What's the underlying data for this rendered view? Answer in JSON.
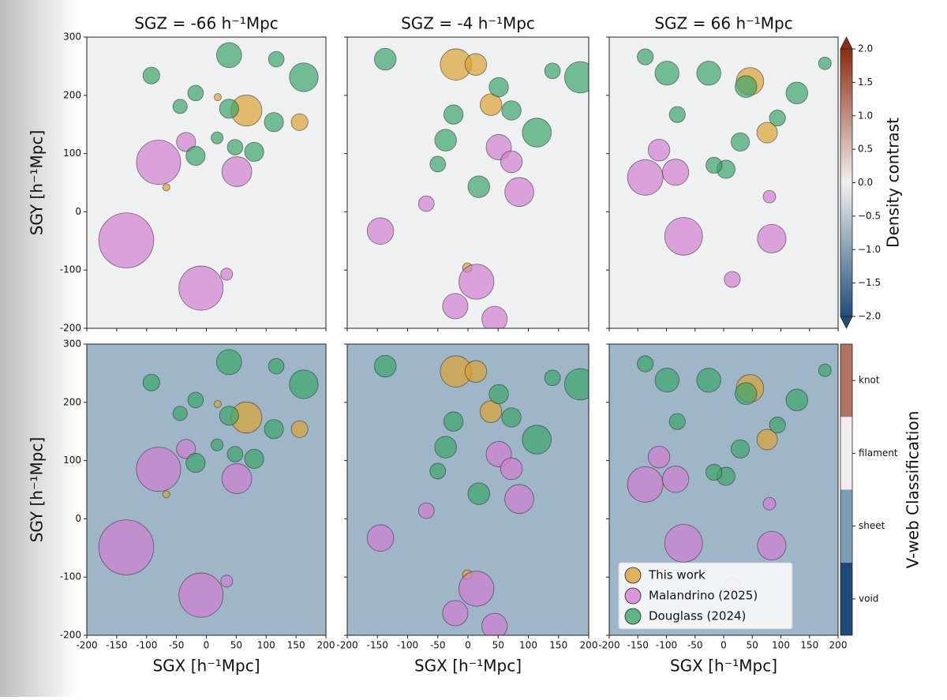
{
  "chart_data": [
    {
      "type": "scatter",
      "title": "SGZ = -66 h⁻¹Mpc",
      "ylabel": "SGY [h⁻¹Mpc]",
      "xlim": [
        -200,
        200
      ],
      "ylim": [
        -200,
        300
      ],
      "xticks": [
        -200,
        -150,
        -100,
        -50,
        0,
        50,
        100,
        150,
        200
      ],
      "yticks": [
        -200,
        -100,
        0,
        100,
        200,
        300
      ],
      "series": [
        {
          "name": "This work",
          "color": "#dba232",
          "x": [
            -67,
            19,
            67,
            156
          ],
          "y": [
            42,
            197,
            174,
            154
          ],
          "sizes": [
            6,
            6,
            26,
            14
          ]
        },
        {
          "name": "Malandrino (2025)",
          "color": "#d27fd0",
          "x": [
            -80,
            -134,
            -9,
            51,
            -34,
            34
          ],
          "y": [
            85,
            -49,
            -131,
            69,
            120,
            -107
          ],
          "sizes": [
            37,
            46,
            37,
            25,
            16,
            10
          ]
        },
        {
          "name": "Douglass (2024)",
          "color": "#3ca56a",
          "x": [
            38,
            -92,
            163,
            117,
            -18,
            38,
            113,
            -18,
            80,
            48,
            -44,
            18
          ],
          "y": [
            269,
            234,
            231,
            262,
            204,
            177,
            154,
            96,
            103,
            111,
            181,
            127
          ],
          "sizes": [
            21,
            14,
            24,
            13,
            13,
            16,
            16,
            16,
            16,
            13,
            12,
            10
          ]
        }
      ]
    },
    {
      "type": "scatter",
      "title": "SGZ = -4 h⁻¹Mpc",
      "xlim": [
        -200,
        200
      ],
      "ylim": [
        -200,
        300
      ],
      "xticks": [
        -200,
        -150,
        -100,
        -50,
        0,
        50,
        100,
        150,
        200
      ],
      "yticks": [
        -200,
        -100,
        0,
        100,
        200,
        300
      ],
      "series": [
        {
          "name": "This work",
          "color": "#dba232",
          "x": [
            -20,
            13,
            38,
            -1
          ],
          "y": [
            253,
            253,
            184,
            -96
          ],
          "sizes": [
            26,
            18,
            18,
            8
          ]
        },
        {
          "name": "Malandrino (2025)",
          "color": "#d27fd0",
          "x": [
            -145,
            14,
            -21,
            51,
            72,
            85,
            44,
            -69
          ],
          "y": [
            -33,
            -120,
            -162,
            111,
            86,
            34,
            -184,
            14
          ],
          "sizes": [
            22,
            29,
            21,
            21,
            18,
            24,
            21,
            13
          ]
        },
        {
          "name": "Douglass (2024)",
          "color": "#3ca56a",
          "x": [
            -137,
            -24,
            18,
            51,
            114,
            186,
            -37,
            -50,
            140,
            72
          ],
          "y": [
            262,
            167,
            43,
            214,
            136,
            231,
            123,
            82,
            242,
            174
          ],
          "sizes": [
            18,
            16,
            18,
            16,
            24,
            26,
            18,
            13,
            13,
            16
          ]
        }
      ]
    },
    {
      "type": "scatter",
      "title": "SGZ = 66 h⁻¹Mpc",
      "xlim": [
        -200,
        200
      ],
      "ylim": [
        -200,
        300
      ],
      "xticks": [
        -200,
        -150,
        -100,
        -50,
        0,
        50,
        100,
        150,
        200
      ],
      "yticks": [
        -200,
        -100,
        0,
        100,
        200,
        300
      ],
      "series": [
        {
          "name": "This work",
          "color": "#dba232",
          "x": [
            76,
            46
          ],
          "y": [
            136,
            224
          ],
          "sizes": [
            18,
            24
          ]
        },
        {
          "name": "Malandrino (2025)",
          "color": "#d27fd0",
          "x": [
            -137,
            -70,
            84,
            -84,
            15,
            80,
            -113
          ],
          "y": [
            59,
            -42,
            -46,
            68,
            -116,
            26,
            106
          ],
          "sizes": [
            31,
            33,
            25,
            23,
            14,
            11,
            19
          ]
        },
        {
          "name": "Douglass (2024)",
          "color": "#3ca56a",
          "x": [
            -99,
            -26,
            128,
            94,
            39,
            -81,
            4,
            29,
            -17,
            -137,
            177
          ],
          "y": [
            238,
            238,
            204,
            161,
            215,
            167,
            73,
            120,
            80,
            266,
            255
          ],
          "sizes": [
            21,
            21,
            19,
            14,
            19,
            14,
            16,
            16,
            14,
            14,
            11
          ]
        }
      ],
      "colorbar": {
        "label": "Density contrast",
        "lim": [
          -2,
          2
        ],
        "colors": [
          "#1f4e79",
          "#f2f0ef",
          "#8c2d14"
        ],
        "ticks": [
          {
            "value": -2,
            "label": "−2.0"
          },
          {
            "value": -1.5,
            "label": "−1.5"
          },
          {
            "value": -1,
            "label": "−1.0"
          },
          {
            "value": -0.5,
            "label": "−0.5"
          },
          {
            "value": 0,
            "label": "0.0"
          },
          {
            "value": 0.5,
            "label": "0.5"
          },
          {
            "value": 1,
            "label": "1.0"
          },
          {
            "value": 1.5,
            "label": "1.5"
          },
          {
            "value": 2,
            "label": "2.0"
          }
        ]
      }
    },
    {
      "type": "scatter",
      "xlabel": "SGX [h⁻¹Mpc]",
      "ylabel": "SGY [h⁻¹Mpc]",
      "xlim": [
        -200,
        200
      ],
      "ylim": [
        -200,
        300
      ],
      "xticks": [
        -200,
        -150,
        -100,
        -50,
        0,
        50,
        100,
        150,
        200
      ],
      "yticks": [
        -200,
        -100,
        0,
        100,
        200,
        300
      ],
      "series": [
        {
          "name": "This work",
          "color": "#dba232",
          "x": [
            -67,
            19,
            67,
            156
          ],
          "y": [
            42,
            197,
            174,
            154
          ],
          "sizes": [
            6,
            6,
            26,
            14
          ]
        },
        {
          "name": "Malandrino (2025)",
          "color": "#d27fd0",
          "x": [
            -80,
            -134,
            -9,
            51,
            -34,
            34
          ],
          "y": [
            85,
            -49,
            -131,
            69,
            120,
            -107
          ],
          "sizes": [
            37,
            46,
            37,
            25,
            16,
            10
          ]
        },
        {
          "name": "Douglass (2024)",
          "color": "#3ca56a",
          "x": [
            38,
            -92,
            163,
            117,
            -18,
            38,
            113,
            -18,
            80,
            48,
            -44,
            18
          ],
          "y": [
            269,
            234,
            231,
            262,
            204,
            177,
            154,
            96,
            103,
            111,
            181,
            127
          ],
          "sizes": [
            21,
            14,
            24,
            13,
            13,
            16,
            16,
            16,
            16,
            13,
            12,
            10
          ]
        }
      ]
    },
    {
      "type": "scatter",
      "xlabel": "SGX [h⁻¹Mpc]",
      "xlim": [
        -200,
        200
      ],
      "ylim": [
        -200,
        300
      ],
      "xticks": [
        -200,
        -150,
        -100,
        -50,
        0,
        50,
        100,
        150,
        200
      ],
      "yticks": [
        -200,
        -100,
        0,
        100,
        200,
        300
      ],
      "series": [
        {
          "name": "This work",
          "color": "#dba232",
          "x": [
            -20,
            13,
            38,
            -1
          ],
          "y": [
            253,
            253,
            184,
            -96
          ],
          "sizes": [
            26,
            18,
            18,
            8
          ]
        },
        {
          "name": "Malandrino (2025)",
          "color": "#d27fd0",
          "x": [
            -145,
            14,
            -21,
            51,
            72,
            85,
            44,
            -69
          ],
          "y": [
            -33,
            -120,
            -162,
            111,
            86,
            34,
            -184,
            14
          ],
          "sizes": [
            22,
            29,
            21,
            21,
            18,
            24,
            21,
            13
          ]
        },
        {
          "name": "Douglass (2024)",
          "color": "#3ca56a",
          "x": [
            -137,
            -24,
            18,
            51,
            114,
            186,
            -37,
            -50,
            140,
            72
          ],
          "y": [
            262,
            167,
            43,
            214,
            136,
            231,
            123,
            82,
            242,
            174
          ],
          "sizes": [
            18,
            16,
            18,
            16,
            24,
            26,
            18,
            13,
            13,
            16
          ]
        }
      ]
    },
    {
      "type": "scatter",
      "xlabel": "SGX [h⁻¹Mpc]",
      "legend": "lower left",
      "xlim": [
        -200,
        200
      ],
      "ylim": [
        -200,
        300
      ],
      "xticks": [
        -200,
        -150,
        -100,
        -50,
        0,
        50,
        100,
        150,
        200
      ],
      "yticks": [
        -200,
        -100,
        0,
        100,
        200,
        300
      ],
      "series": [
        {
          "name": "This work",
          "color": "#dba232",
          "x": [
            76,
            46
          ],
          "y": [
            136,
            224
          ],
          "sizes": [
            18,
            24
          ]
        },
        {
          "name": "Malandrino (2025)",
          "color": "#d27fd0",
          "x": [
            -137,
            -70,
            84,
            -84,
            15,
            80,
            -113
          ],
          "y": [
            59,
            -42,
            -46,
            68,
            -116,
            26,
            106
          ],
          "sizes": [
            31,
            33,
            25,
            23,
            14,
            11,
            19
          ]
        },
        {
          "name": "Douglass (2024)",
          "color": "#3ca56a",
          "x": [
            -99,
            -26,
            128,
            94,
            39,
            -81,
            4,
            29,
            -17,
            -137,
            177
          ],
          "y": [
            238,
            238,
            204,
            161,
            215,
            167,
            73,
            120,
            80,
            266,
            255
          ],
          "sizes": [
            21,
            21,
            19,
            14,
            19,
            14,
            16,
            16,
            14,
            14,
            11
          ]
        }
      ],
      "colorbar": {
        "label": "V-web Classification",
        "categories": [
          "void",
          "sheet",
          "filament",
          "knot"
        ],
        "colors": [
          "#1e4a76",
          "#7b9cb6",
          "#f3eeee",
          "#b27462"
        ]
      }
    }
  ]
}
